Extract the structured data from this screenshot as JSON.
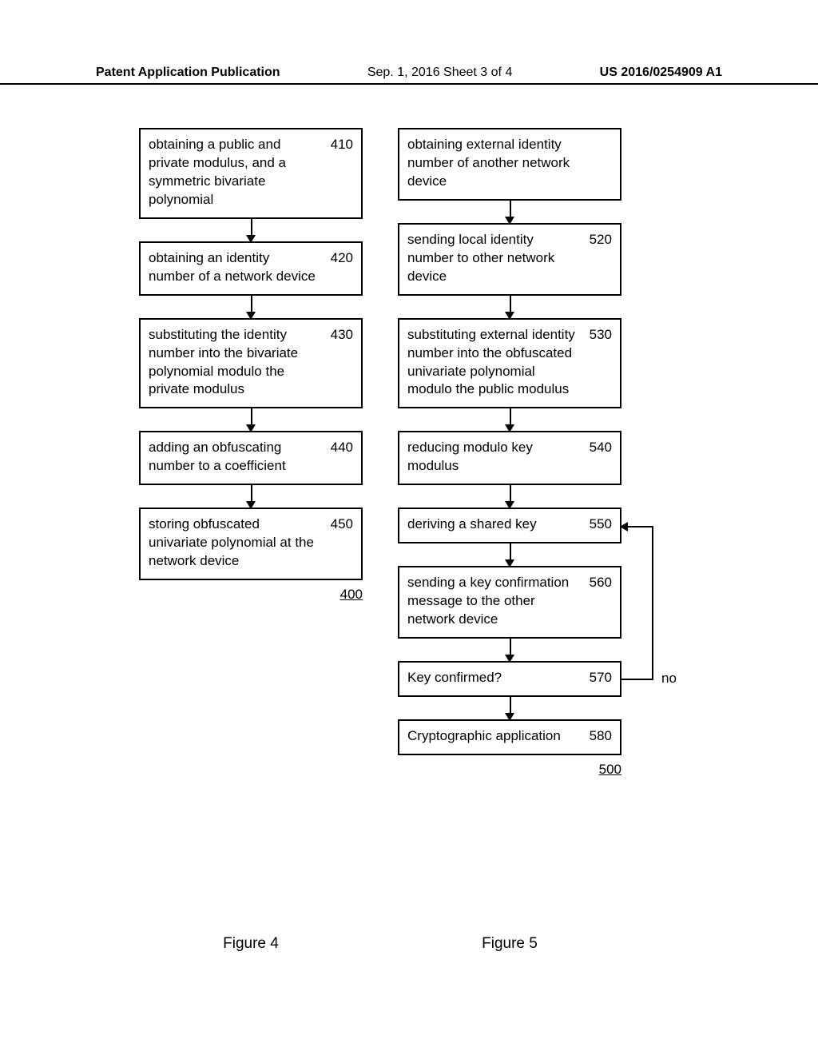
{
  "header": {
    "left": "Patent Application Publication",
    "center": "Sep. 1, 2016   Sheet 3 of 4",
    "right": "US 2016/0254909 A1"
  },
  "left_chart": {
    "boxes": [
      {
        "text": "obtaining a public and private modulus, and a symmetric bivariate polynomial",
        "num": "410"
      },
      {
        "text": "obtaining an identity number of a network device",
        "num": "420"
      },
      {
        "text": "substituting the identity number into the bivariate polynomial modulo the private modulus",
        "num": "430"
      },
      {
        "text": "adding an obfuscating number to a coefficient",
        "num": "440"
      },
      {
        "text": "storing obfuscated univariate polynomial at the network device",
        "num": "450"
      }
    ],
    "label": "400",
    "caption": "Figure 4"
  },
  "right_chart": {
    "boxes": [
      {
        "text": "obtaining external identity number of another network device",
        "num": ""
      },
      {
        "text": "sending local identity number to other network device",
        "num": "520"
      },
      {
        "text": "substituting external identity number into the obfuscated univariate polynomial modulo the public modulus",
        "num": "530"
      },
      {
        "text": "reducing modulo key modulus",
        "num": "540"
      },
      {
        "text": "deriving a shared key",
        "num": "550"
      },
      {
        "text": "sending a key confirmation message to the other network device",
        "num": "560"
      },
      {
        "text": "Key confirmed?",
        "num": "570"
      },
      {
        "text": "Cryptographic application",
        "num": "580"
      }
    ],
    "no_label": "no",
    "label": "500",
    "caption": "Figure 5"
  },
  "colors": {
    "background": "#ffffff",
    "text": "#000000",
    "border": "#000000",
    "arrow": "#000000"
  },
  "layout": {
    "box_font_size": 17,
    "box_border_width": 2,
    "arrow_gap": 28
  }
}
